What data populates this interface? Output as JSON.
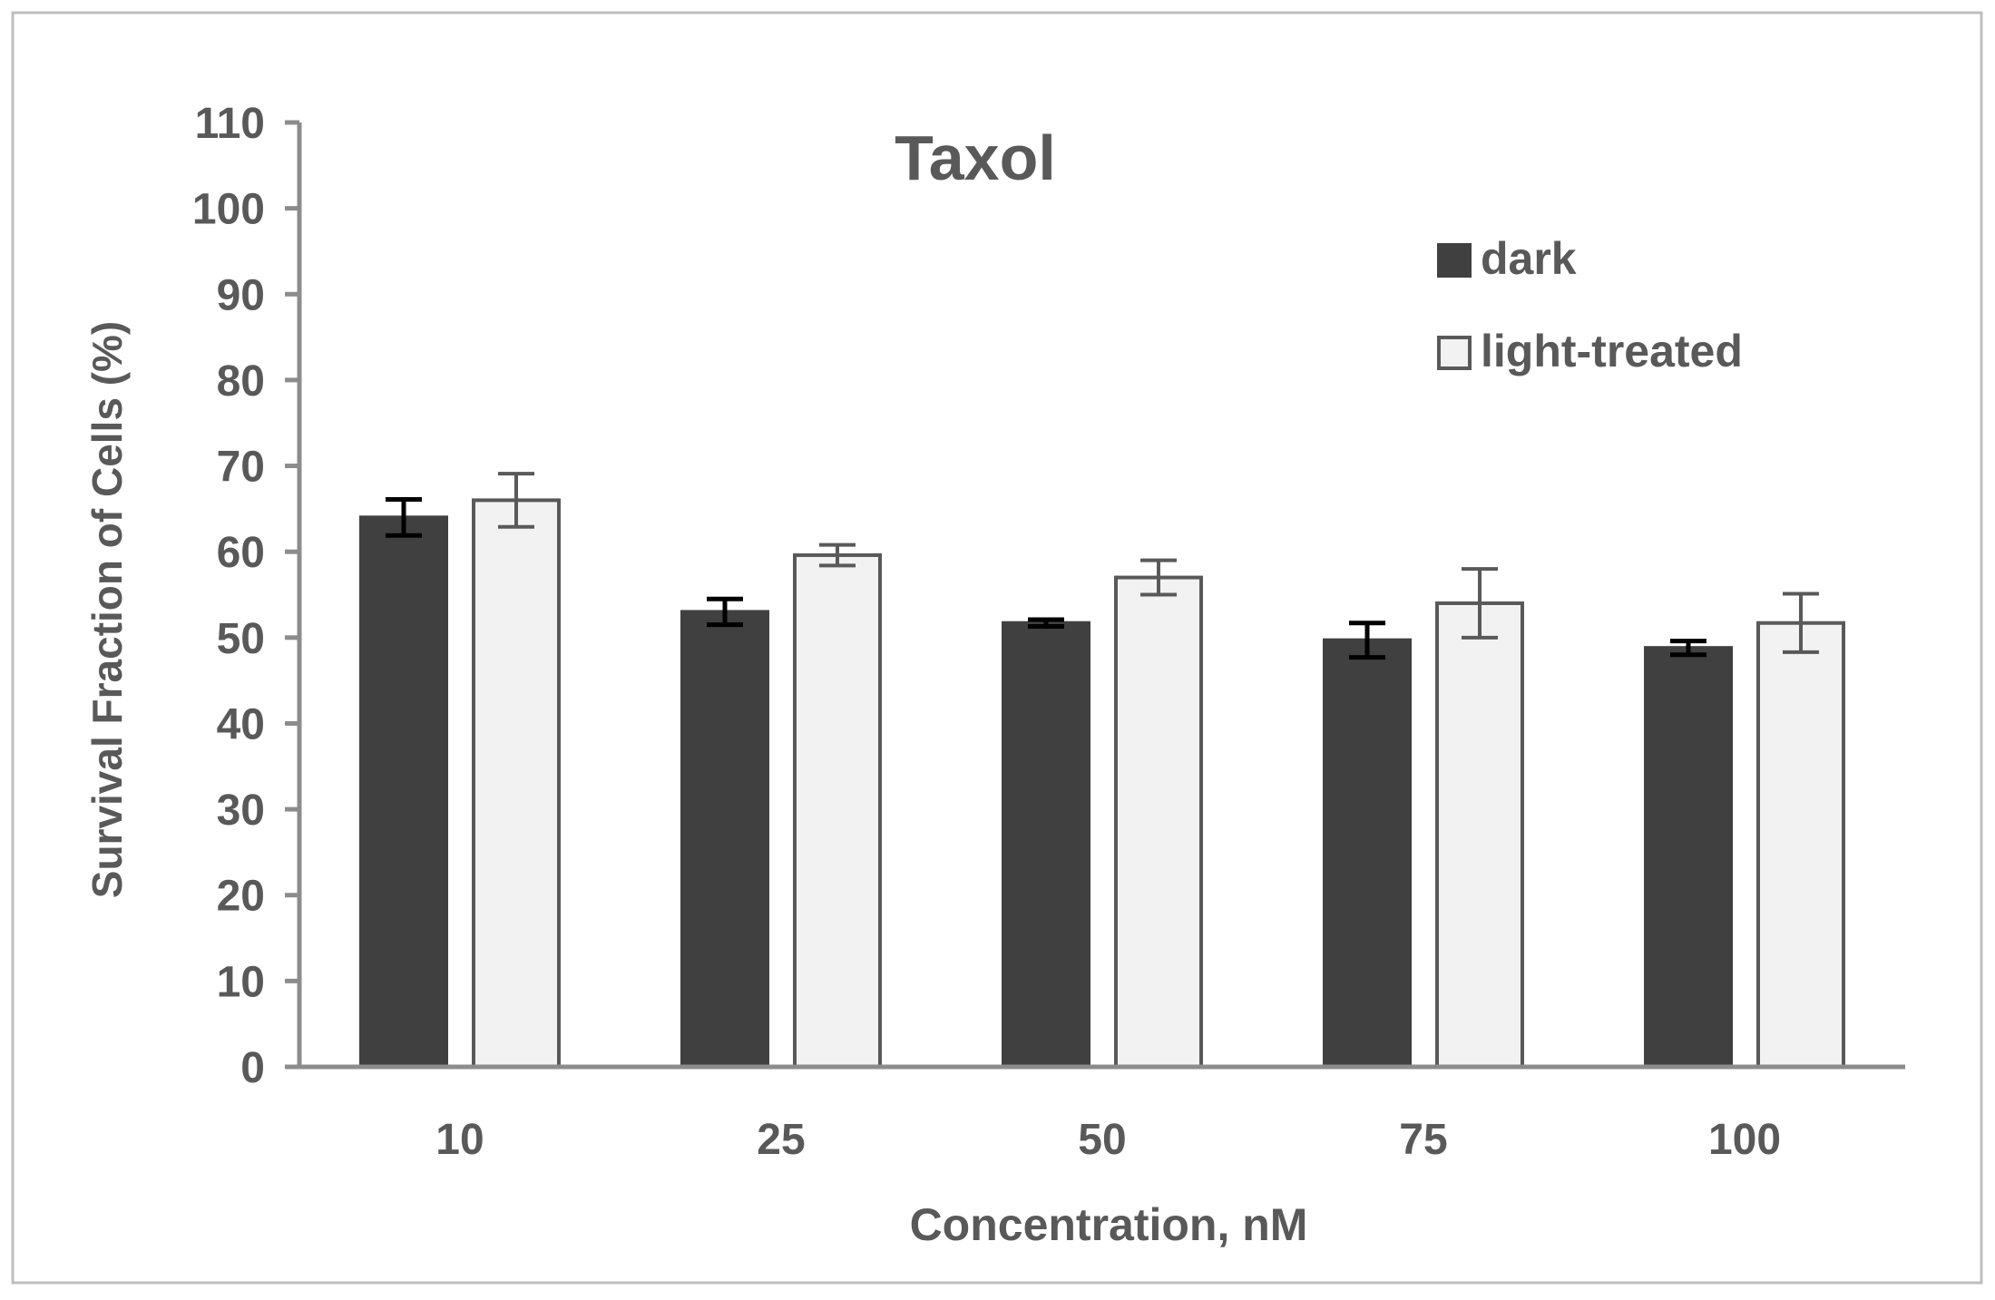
{
  "chart_data": {
    "type": "bar",
    "title": "Taxol",
    "xlabel": "Concentration, nM",
    "ylabel": "Survival Fraction of Cells (%)",
    "categories": [
      "10",
      "25",
      "50",
      "75",
      "100"
    ],
    "ylim": [
      0,
      110
    ],
    "yticks": [
      0,
      10,
      20,
      30,
      40,
      50,
      60,
      70,
      80,
      90,
      100,
      110
    ],
    "grid": false,
    "legend_position": "top-right",
    "series": [
      {
        "name": "dark",
        "values": [
          64.0,
          53.0,
          51.7,
          49.7,
          48.8
        ],
        "errors": [
          2.1,
          1.5,
          0.4,
          2.0,
          0.8
        ],
        "fill": "#404040",
        "stroke": "#404040",
        "error_color": "#000000"
      },
      {
        "name": "light-treated",
        "values": [
          66.0,
          59.6,
          57.0,
          54.0,
          51.7
        ],
        "errors": [
          3.1,
          1.2,
          2.0,
          4.0,
          3.4
        ],
        "fill": "#f2f2f2",
        "stroke": "#595959",
        "error_color": "#595959"
      }
    ]
  }
}
